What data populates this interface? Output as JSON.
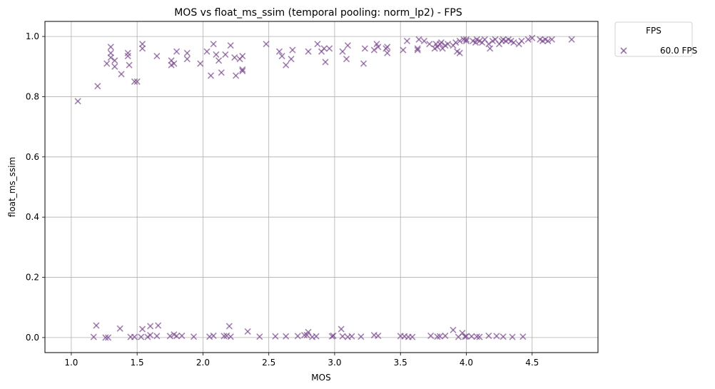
{
  "chart_data": {
    "type": "scatter",
    "title": "MOS vs float_ms_ssim (temporal pooling: norm_lp2) - FPS",
    "xlabel": "MOS",
    "ylabel": "float_ms_ssim",
    "xlim": [
      0.8,
      5.0
    ],
    "ylim": [
      -0.05,
      1.05
    ],
    "xticks": [
      1.0,
      1.5,
      2.0,
      2.5,
      3.0,
      3.5,
      4.0,
      4.5
    ],
    "xtick_labels": [
      "1.0",
      "1.5",
      "2.0",
      "2.5",
      "3.0",
      "3.5",
      "4.0",
      "4.5"
    ],
    "yticks": [
      0.0,
      0.2,
      0.4,
      0.6,
      0.8,
      1.0
    ],
    "ytick_labels": [
      "0.0",
      "0.2",
      "0.4",
      "0.6",
      "0.8",
      "1.0"
    ],
    "grid": true,
    "legend": {
      "title": "FPS",
      "placement": "outside-top-right"
    },
    "series": [
      {
        "name": "60.0 FPS",
        "marker": "x",
        "color": "#7b4a8f",
        "points": [
          [
            1.05,
            0.785
          ],
          [
            1.2,
            0.835
          ],
          [
            1.27,
            0.91
          ],
          [
            1.3,
            0.965
          ],
          [
            1.3,
            0.945
          ],
          [
            1.3,
            0.93
          ],
          [
            1.33,
            0.92
          ],
          [
            1.33,
            0.9
          ],
          [
            1.38,
            0.875
          ],
          [
            1.43,
            0.945
          ],
          [
            1.43,
            0.935
          ],
          [
            1.44,
            0.905
          ],
          [
            1.48,
            0.85
          ],
          [
            1.5,
            0.85
          ],
          [
            1.54,
            0.975
          ],
          [
            1.54,
            0.96
          ],
          [
            1.65,
            0.935
          ],
          [
            1.76,
            0.92
          ],
          [
            1.76,
            0.905
          ],
          [
            1.78,
            0.91
          ],
          [
            1.8,
            0.95
          ],
          [
            1.88,
            0.945
          ],
          [
            1.88,
            0.925
          ],
          [
            1.98,
            0.91
          ],
          [
            2.03,
            0.95
          ],
          [
            2.06,
            0.87
          ],
          [
            2.08,
            0.975
          ],
          [
            2.1,
            0.94
          ],
          [
            2.12,
            0.92
          ],
          [
            2.14,
            0.88
          ],
          [
            2.17,
            0.94
          ],
          [
            2.21,
            0.97
          ],
          [
            2.24,
            0.93
          ],
          [
            2.25,
            0.87
          ],
          [
            2.28,
            0.925
          ],
          [
            2.3,
            0.89
          ],
          [
            2.3,
            0.885
          ],
          [
            2.3,
            0.935
          ],
          [
            2.48,
            0.975
          ],
          [
            2.58,
            0.95
          ],
          [
            2.6,
            0.935
          ],
          [
            2.63,
            0.905
          ],
          [
            2.67,
            0.925
          ],
          [
            2.68,
            0.955
          ],
          [
            2.8,
            0.95
          ],
          [
            2.87,
            0.975
          ],
          [
            2.9,
            0.95
          ],
          [
            2.92,
            0.96
          ],
          [
            2.93,
            0.915
          ],
          [
            2.96,
            0.96
          ],
          [
            3.06,
            0.95
          ],
          [
            3.09,
            0.925
          ],
          [
            3.1,
            0.97
          ],
          [
            3.22,
            0.91
          ],
          [
            3.23,
            0.96
          ],
          [
            3.3,
            0.955
          ],
          [
            3.32,
            0.975
          ],
          [
            3.33,
            0.965
          ],
          [
            3.39,
            0.96
          ],
          [
            3.4,
            0.945
          ],
          [
            3.4,
            0.965
          ],
          [
            3.52,
            0.955
          ],
          [
            3.55,
            0.985
          ],
          [
            3.63,
            0.955
          ],
          [
            3.63,
            0.96
          ],
          [
            3.64,
            0.99
          ],
          [
            3.68,
            0.985
          ],
          [
            3.72,
            0.975
          ],
          [
            3.76,
            0.96
          ],
          [
            3.77,
            0.975
          ],
          [
            3.78,
            0.965
          ],
          [
            3.8,
            0.975
          ],
          [
            3.81,
            0.98
          ],
          [
            3.82,
            0.96
          ],
          [
            3.84,
            0.97
          ],
          [
            3.86,
            0.975
          ],
          [
            3.9,
            0.97
          ],
          [
            3.92,
            0.98
          ],
          [
            3.93,
            0.95
          ],
          [
            3.95,
            0.945
          ],
          [
            3.95,
            0.985
          ],
          [
            3.98,
            0.99
          ],
          [
            4.0,
            0.985
          ],
          [
            4.0,
            0.99
          ],
          [
            4.05,
            0.985
          ],
          [
            4.07,
            0.98
          ],
          [
            4.08,
            0.99
          ],
          [
            4.1,
            0.985
          ],
          [
            4.12,
            0.98
          ],
          [
            4.14,
            0.99
          ],
          [
            4.17,
            0.975
          ],
          [
            4.18,
            0.96
          ],
          [
            4.2,
            0.985
          ],
          [
            4.22,
            0.99
          ],
          [
            4.25,
            0.975
          ],
          [
            4.27,
            0.985
          ],
          [
            4.28,
            0.99
          ],
          [
            4.3,
            0.985
          ],
          [
            4.32,
            0.99
          ],
          [
            4.34,
            0.985
          ],
          [
            4.36,
            0.98
          ],
          [
            4.4,
            0.975
          ],
          [
            4.42,
            0.985
          ],
          [
            4.47,
            0.99
          ],
          [
            4.5,
            0.995
          ],
          [
            4.56,
            0.99
          ],
          [
            4.58,
            0.985
          ],
          [
            4.6,
            0.99
          ],
          [
            4.62,
            0.985
          ],
          [
            4.65,
            0.99
          ],
          [
            4.8,
            0.99
          ],
          [
            1.17,
            0.002
          ],
          [
            1.19,
            0.04
          ],
          [
            1.26,
            0.0
          ],
          [
            1.28,
            0.0
          ],
          [
            1.37,
            0.03
          ],
          [
            1.45,
            0.002
          ],
          [
            1.48,
            0.002
          ],
          [
            1.53,
            0.002
          ],
          [
            1.54,
            0.028
          ],
          [
            1.58,
            0.002
          ],
          [
            1.6,
            0.008
          ],
          [
            1.6,
            0.038
          ],
          [
            1.65,
            0.005
          ],
          [
            1.66,
            0.04
          ],
          [
            1.75,
            0.005
          ],
          [
            1.78,
            0.01
          ],
          [
            1.8,
            0.005
          ],
          [
            1.84,
            0.006
          ],
          [
            1.93,
            0.003
          ],
          [
            2.05,
            0.003
          ],
          [
            2.08,
            0.006
          ],
          [
            2.16,
            0.005
          ],
          [
            2.18,
            0.006
          ],
          [
            2.2,
            0.038
          ],
          [
            2.21,
            0.003
          ],
          [
            2.34,
            0.02
          ],
          [
            2.43,
            0.003
          ],
          [
            2.55,
            0.004
          ],
          [
            2.63,
            0.004
          ],
          [
            2.72,
            0.005
          ],
          [
            2.77,
            0.008
          ],
          [
            2.79,
            0.008
          ],
          [
            2.8,
            0.018
          ],
          [
            2.83,
            0.002
          ],
          [
            2.86,
            0.004
          ],
          [
            2.98,
            0.004
          ],
          [
            2.99,
            0.006
          ],
          [
            3.05,
            0.028
          ],
          [
            3.06,
            0.004
          ],
          [
            3.1,
            0.002
          ],
          [
            3.13,
            0.004
          ],
          [
            3.2,
            0.003
          ],
          [
            3.3,
            0.008
          ],
          [
            3.33,
            0.006
          ],
          [
            3.5,
            0.005
          ],
          [
            3.53,
            0.004
          ],
          [
            3.56,
            0.002
          ],
          [
            3.59,
            0.002
          ],
          [
            3.73,
            0.006
          ],
          [
            3.78,
            0.003
          ],
          [
            3.8,
            0.004
          ],
          [
            3.84,
            0.006
          ],
          [
            3.9,
            0.025
          ],
          [
            3.94,
            0.002
          ],
          [
            3.97,
            0.015
          ],
          [
            3.99,
            0.003
          ],
          [
            4.0,
            0.004
          ],
          [
            4.04,
            0.004
          ],
          [
            4.08,
            0.003
          ],
          [
            4.1,
            0.002
          ],
          [
            4.17,
            0.006
          ],
          [
            4.23,
            0.005
          ],
          [
            4.28,
            0.003
          ],
          [
            4.35,
            0.002
          ],
          [
            4.43,
            0.003
          ]
        ]
      }
    ]
  }
}
